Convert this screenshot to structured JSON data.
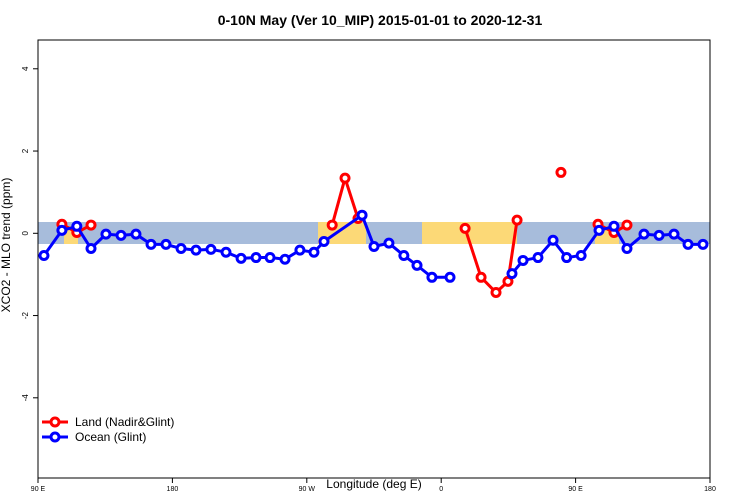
{
  "chart_data": {
    "type": "line",
    "title": "0-10N May (Ver 10_MIP)   2015-01-01 to 2020-12-31",
    "x_label": "Longitude (deg E)",
    "y_label": "XCO2 - MLO trend (ppm)",
    "xlim": [
      90,
      540
    ],
    "ylim": [
      -5.95,
      4.7
    ],
    "xticks": [
      {
        "value": 90,
        "label": "90 E"
      },
      180,
      {
        "value": 270,
        "label": "90 W"
      },
      {
        "value": 360,
        "label": "0"
      },
      {
        "value": 450,
        "label": "90 E"
      },
      {
        "value": 540,
        "label": "180"
      }
    ],
    "yticks": [
      -4,
      -2,
      0,
      2,
      4
    ],
    "legend": "bottom-left",
    "series": [
      {
        "name": "Land (Nadir&Glint)",
        "color": "#ff0000",
        "x": [
          106,
          116,
          125.5,
          200,
          287,
          295.6,
          304.3,
          340,
          376,
          386.7,
          396.7,
          404.7,
          410.8,
          425,
          440.2,
          455,
          465,
          475.7,
          484.4
        ],
        "values": [
          0.22,
          0.02,
          0.2,
          null,
          0.2,
          1.34,
          0.36,
          null,
          0.12,
          -1.07,
          -1.44,
          -1.17,
          0.32,
          null,
          1.48,
          null,
          0.22,
          0.02,
          0.2
        ]
      },
      {
        "name": "Ocean (Glint)",
        "color": "#0000ff",
        "x": [
          94,
          106,
          116,
          125.5,
          135.5,
          145.6,
          155.6,
          165.7,
          175.7,
          185.8,
          195.8,
          205.8,
          215.9,
          226,
          236,
          245.4,
          255.4,
          265.4,
          274.8,
          281.5,
          307,
          315,
          325,
          335,
          343.8,
          353.8,
          365.9,
          386,
          407.4,
          414.8,
          424.8,
          434.9,
          444,
          453.7,
          465.7,
          475.7,
          484.4,
          495.8,
          505.9,
          515.9,
          525.3,
          535.3
        ],
        "values": [
          -0.54,
          0.07,
          0.17,
          -0.37,
          -0.02,
          -0.05,
          -0.02,
          -0.27,
          -0.27,
          -0.37,
          -0.41,
          -0.39,
          -0.46,
          -0.61,
          -0.59,
          -0.59,
          -0.63,
          -0.41,
          -0.46,
          -0.2,
          0.44,
          -0.32,
          -0.24,
          -0.54,
          -0.78,
          -1.07,
          -1.07,
          null,
          -0.98,
          -0.66,
          -0.59,
          -0.17,
          -0.59,
          -0.54,
          0.07,
          0.17,
          -0.37,
          -0.02,
          -0.05,
          -0.02,
          -0.27,
          -0.27
        ]
      }
    ]
  }
}
